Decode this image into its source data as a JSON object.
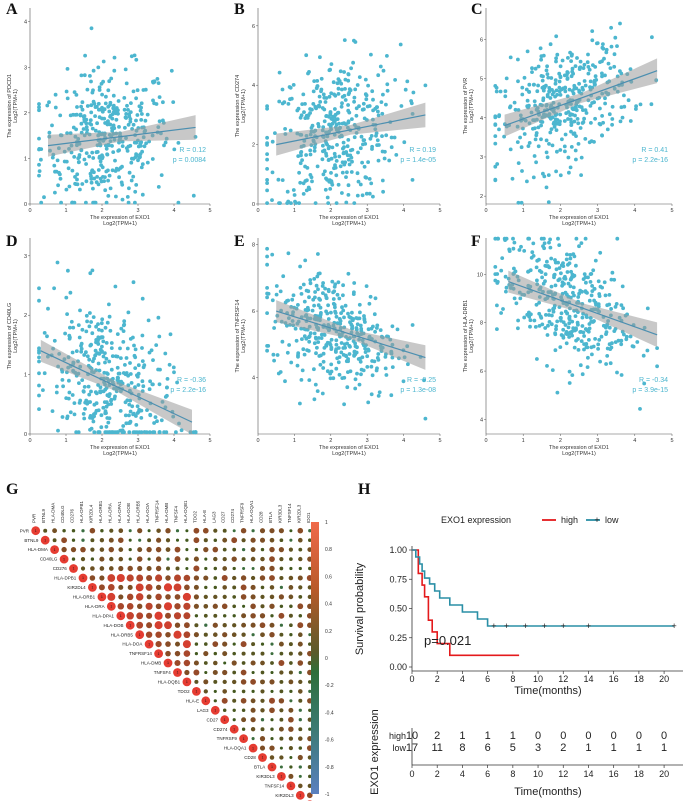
{
  "chart_data": [
    {
      "id": "A",
      "type": "scatter",
      "xlabel": "The expression of EXO1",
      "xlabel2": "Log2(TPM+1)",
      "ylabel": "The expression of PDCD1",
      "ylabel2": "Log2(TPM+1)",
      "xlim": [
        0,
        5
      ],
      "ylim": [
        0,
        4.3
      ],
      "xticks": [
        "0",
        "1",
        "2",
        "3",
        "4",
        "5"
      ],
      "yticks": [
        "0",
        "1",
        "2",
        "3",
        "4"
      ],
      "fit": {
        "x0": 0.5,
        "y0": 1.28,
        "x1": 4.6,
        "y1": 1.68
      },
      "n": 400,
      "mean_y": 1.45,
      "sd_y": 0.75,
      "r_text": "R = 0.12",
      "p_text": "p = 0.0084"
    },
    {
      "id": "B",
      "type": "scatter",
      "xlabel": "The expression of EXO1",
      "xlabel2": "Log2(TPM+1)",
      "ylabel": "The expression of CD274",
      "ylabel2": "Log2(TPM+1)",
      "xlim": [
        0,
        5
      ],
      "ylim": [
        0,
        6.6
      ],
      "xticks": [
        "0",
        "1",
        "2",
        "3",
        "4",
        "5"
      ],
      "yticks": [
        "0",
        "2",
        "4",
        "6"
      ],
      "fit": {
        "x0": 0.5,
        "y0": 2.0,
        "x1": 4.6,
        "y1": 3.0
      },
      "n": 400,
      "mean_y": 2.45,
      "sd_y": 1.25,
      "r_text": "R = 0.19",
      "p_text": "p = 1.4e-05"
    },
    {
      "id": "C",
      "type": "scatter",
      "xlabel": "The expression of EXO1",
      "xlabel2": "Log2(TPM+1)",
      "ylabel": "The expression of PVR",
      "ylabel2": "Log2(TPM+1)",
      "xlim": [
        0,
        5
      ],
      "ylim": [
        1.8,
        6.8
      ],
      "xticks": [
        "0",
        "1",
        "2",
        "3",
        "4",
        "5"
      ],
      "yticks": [
        "2",
        "3",
        "4",
        "5",
        "6"
      ],
      "fit": {
        "x0": 0.5,
        "y0": 3.8,
        "x1": 4.6,
        "y1": 5.2
      },
      "n": 400,
      "mean_y": 4.3,
      "sd_y": 0.75,
      "r_text": "R = 0.41",
      "p_text": "p = 2.2e-16"
    },
    {
      "id": "D",
      "type": "scatter",
      "xlabel": "The expression of EXO1",
      "xlabel2": "Log2(TPM+1)",
      "ylabel": "The expression of CD40LG",
      "ylabel2": "Log2(TPM+1)",
      "xlim": [
        0,
        5
      ],
      "ylim": [
        0,
        3.3
      ],
      "xticks": [
        "0",
        "1",
        "2",
        "3",
        "4",
        "5"
      ],
      "yticks": [
        "0",
        "1",
        "2",
        "3"
      ],
      "fit": {
        "x0": 0.3,
        "y0": 1.4,
        "x1": 4.5,
        "y1": 0.2
      },
      "n": 400,
      "mean_y": 0.85,
      "sd_y": 0.65,
      "r_text": "R = -0.36",
      "p_text": "p = 2.2e-16"
    },
    {
      "id": "E",
      "type": "scatter",
      "xlabel": "The expression of EXO1",
      "xlabel2": "Log2(TPM+1)",
      "ylabel": "The expression of TNFRSF14",
      "ylabel2": "Log2(TPM+1)",
      "xlim": [
        0,
        5
      ],
      "ylim": [
        2.3,
        8.2
      ],
      "xticks": [
        "0",
        "1",
        "2",
        "3",
        "4",
        "5"
      ],
      "yticks": [
        "4",
        "6",
        "8"
      ],
      "fit": {
        "x0": 0.5,
        "y0": 6.0,
        "x1": 4.6,
        "y1": 4.6
      },
      "n": 400,
      "mean_y": 5.45,
      "sd_y": 0.85,
      "r_text": "R = -0.25",
      "p_text": "p = 1.3e-08"
    },
    {
      "id": "F",
      "type": "scatter",
      "xlabel": "The expression of EXO1",
      "xlabel2": "Log2(TPM+1)",
      "ylabel": "The expression of HLA-DRB1",
      "ylabel2": "Log2(TPM+1)",
      "xlim": [
        0,
        5
      ],
      "ylim": [
        3.4,
        11.5
      ],
      "xticks": [
        "0",
        "1",
        "2",
        "3",
        "4",
        "5"
      ],
      "yticks": [
        "4",
        "6",
        "8",
        "10"
      ],
      "fit": {
        "x0": 0.6,
        "y0": 9.7,
        "x1": 4.6,
        "y1": 7.5
      },
      "n": 400,
      "mean_y": 8.8,
      "sd_y": 1.3,
      "r_text": "R = -0.34",
      "p_text": "p = 3.9e-15"
    },
    {
      "id": "G",
      "type": "heatmap",
      "genes": [
        "PVR",
        "BTNL9",
        "HLA-DMA",
        "CD40LG",
        "CD276",
        "HLA-DPB1",
        "KIR2DL4",
        "HLA-DRB1",
        "HLA-DRA",
        "HLA-DPA1",
        "HLA-DOB",
        "HLA-DRB5",
        "HLA-DOA",
        "TNFRSF14",
        "HLA-DMB",
        "TNFSF4",
        "HLA-DQB1",
        "TDO2",
        "HLA-E",
        "LAG3",
        "CD27",
        "CD274",
        "TNFRSF9",
        "HLA-DQA1",
        "CD28",
        "BTLA",
        "KIR3DL3",
        "TNFSF14",
        "KIR2DL3",
        "IDO1"
      ],
      "colorbar": [
        "1",
        "0.8",
        "0.6",
        "0.4",
        "0.2",
        "0",
        "-0.2",
        "-0.4",
        "-0.6",
        "-0.8",
        "-1"
      ]
    },
    {
      "id": "H",
      "type": "line",
      "legend_title": "EXO1 expression",
      "series": [
        {
          "name": "high",
          "color": "#e41a1c",
          "x": [
            0,
            0.5,
            0.8,
            1.0,
            1.3,
            1.6,
            2.0,
            2.5,
            3.0,
            8.5
          ],
          "y": [
            1.0,
            0.8,
            0.7,
            0.6,
            0.4,
            0.3,
            0.2,
            0.2,
            0.1,
            0.1
          ]
        },
        {
          "name": "low",
          "color": "#2a8fa6",
          "x": [
            0,
            0.3,
            0.6,
            0.8,
            1.0,
            1.4,
            1.8,
            2.2,
            3.0,
            4.0,
            5.2,
            6.0,
            20.8
          ],
          "y": [
            1.0,
            0.94,
            0.88,
            0.82,
            0.76,
            0.71,
            0.65,
            0.59,
            0.53,
            0.47,
            0.41,
            0.35,
            0.35
          ]
        }
      ],
      "censor_low": [
        6.5,
        7.5,
        9.0,
        10.5,
        12.0,
        14.0,
        20.8
      ],
      "censor_high": [],
      "p_text": "p=0.021",
      "ylabel": "Survival probability",
      "xlabel": "Time(months)",
      "yticks": [
        "0.00",
        "0.25",
        "0.50",
        "0.75",
        "1.00"
      ],
      "xticks": [
        "0",
        "2",
        "4",
        "6",
        "8",
        "10",
        "12",
        "14",
        "16",
        "18",
        "20"
      ],
      "risk_title": "EXO1 expression",
      "risk_rows": [
        {
          "name": "high",
          "color": "#e41a1c",
          "values": [
            "10",
            "2",
            "1",
            "1",
            "1",
            "0",
            "0",
            "0",
            "0",
            "0",
            "0"
          ]
        },
        {
          "name": "low",
          "color": "#2a8fa6",
          "values": [
            "17",
            "11",
            "8",
            "6",
            "5",
            "3",
            "2",
            "1",
            "1",
            "1",
            "1"
          ]
        }
      ]
    }
  ]
}
